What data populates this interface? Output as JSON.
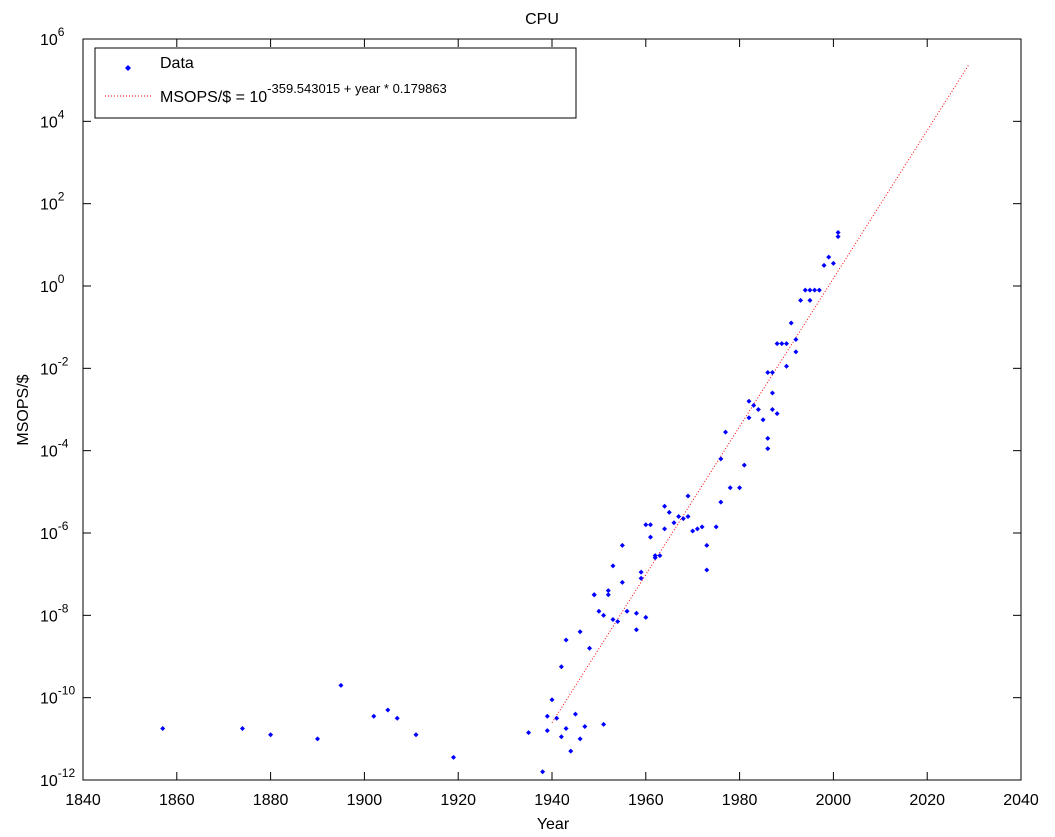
{
  "chart_data": {
    "type": "scatter",
    "title": "CPU",
    "xlabel": "Year",
    "ylabel": "MSOPS/$",
    "xlim": [
      1840,
      2040
    ],
    "ylim_log10": [
      -12,
      6
    ],
    "y_scale": "log",
    "grid": false,
    "legend_position": "top-left",
    "x_ticks": [
      "1840",
      "1860",
      "1880",
      "1900",
      "1920",
      "1940",
      "1960",
      "1980",
      "2000",
      "2020",
      "2040"
    ],
    "y_ticks": [
      {
        "base": "10",
        "exp": "-12"
      },
      {
        "base": "10",
        "exp": "-10"
      },
      {
        "base": "10",
        "exp": "-8"
      },
      {
        "base": "10",
        "exp": "-6"
      },
      {
        "base": "10",
        "exp": "-4"
      },
      {
        "base": "10",
        "exp": "-2"
      },
      {
        "base": "10",
        "exp": "0"
      },
      {
        "base": "10",
        "exp": "2"
      },
      {
        "base": "10",
        "exp": "4"
      },
      {
        "base": "10",
        "exp": "6"
      }
    ],
    "colors": {
      "data": "#0000ff",
      "fit": "#ff0000"
    },
    "legend": {
      "data_label": "Data",
      "fit_label_prefix": "MSOPS/$ = 10",
      "fit_label_exponent": "-359.543015 + year * 0.179863"
    },
    "fit": {
      "intercept": -359.543015,
      "slope": 0.179863,
      "x_range": [
        1940,
        2029
      ]
    },
    "series": [
      {
        "name": "Data",
        "points_log10": [
          [
            1857,
            -10.75
          ],
          [
            1874,
            -10.75
          ],
          [
            1880,
            -10.9
          ],
          [
            1890,
            -11.0
          ],
          [
            1895,
            -9.7
          ],
          [
            1902,
            -10.45
          ],
          [
            1905,
            -10.3
          ],
          [
            1907,
            -10.5
          ],
          [
            1911,
            -10.9
          ],
          [
            1919,
            -11.45
          ],
          [
            1935,
            -10.85
          ],
          [
            1938,
            -11.8
          ],
          [
            1939,
            -10.8
          ],
          [
            1939,
            -10.45
          ],
          [
            1940,
            -10.05
          ],
          [
            1941,
            -10.5
          ],
          [
            1942,
            -10.95
          ],
          [
            1942,
            -9.25
          ],
          [
            1943,
            -8.6
          ],
          [
            1943,
            -10.75
          ],
          [
            1944,
            -11.3
          ],
          [
            1945,
            -10.4
          ],
          [
            1946,
            -8.4
          ],
          [
            1946,
            -11.0
          ],
          [
            1947,
            -10.7
          ],
          [
            1948,
            -8.8
          ],
          [
            1949,
            -7.5
          ],
          [
            1949,
            -7.5
          ],
          [
            1950,
            -7.9
          ],
          [
            1951,
            -8.0
          ],
          [
            1951,
            -10.65
          ],
          [
            1952,
            -7.5
          ],
          [
            1952,
            -7.4
          ],
          [
            1953,
            -8.1
          ],
          [
            1953,
            -6.8
          ],
          [
            1954,
            -8.15
          ],
          [
            1955,
            -7.2
          ],
          [
            1955,
            -6.3
          ],
          [
            1956,
            -7.9
          ],
          [
            1958,
            -7.95
          ],
          [
            1958,
            -8.35
          ],
          [
            1959,
            -7.1
          ],
          [
            1959,
            -6.95
          ],
          [
            1960,
            -5.8
          ],
          [
            1960,
            -8.05
          ],
          [
            1961,
            -5.8
          ],
          [
            1961,
            -6.1
          ],
          [
            1962,
            -6.55
          ],
          [
            1962,
            -6.6
          ],
          [
            1963,
            -6.55
          ],
          [
            1964,
            -5.35
          ],
          [
            1964,
            -5.9
          ],
          [
            1965,
            -5.5
          ],
          [
            1966,
            -5.75
          ],
          [
            1967,
            -5.6
          ],
          [
            1968,
            -5.65
          ],
          [
            1969,
            -5.1
          ],
          [
            1969,
            -5.6
          ],
          [
            1970,
            -5.95
          ],
          [
            1971,
            -5.9
          ],
          [
            1972,
            -5.85
          ],
          [
            1973,
            -6.3
          ],
          [
            1973,
            -6.9
          ],
          [
            1975,
            -5.85
          ],
          [
            1976,
            -5.25
          ],
          [
            1976,
            -4.2
          ],
          [
            1977,
            -3.55
          ],
          [
            1978,
            -4.9
          ],
          [
            1980,
            -4.9
          ],
          [
            1981,
            -4.35
          ],
          [
            1982,
            -3.2
          ],
          [
            1982,
            -2.8
          ],
          [
            1983,
            -2.9
          ],
          [
            1984,
            -3.0
          ],
          [
            1985,
            -3.25
          ],
          [
            1986,
            -3.7
          ],
          [
            1986,
            -3.95
          ],
          [
            1986,
            -2.1
          ],
          [
            1987,
            -3.0
          ],
          [
            1987,
            -2.6
          ],
          [
            1987,
            -2.1
          ],
          [
            1988,
            -3.1
          ],
          [
            1988,
            -1.4
          ],
          [
            1989,
            -1.4
          ],
          [
            1990,
            -1.95
          ],
          [
            1990,
            -1.4
          ],
          [
            1991,
            -0.9
          ],
          [
            1992,
            -1.6
          ],
          [
            1992,
            -1.3
          ],
          [
            1993,
            -0.35
          ],
          [
            1994,
            -0.1
          ],
          [
            1995,
            -0.1
          ],
          [
            1995,
            -0.35
          ],
          [
            1996,
            -0.1
          ],
          [
            1997,
            -0.1
          ],
          [
            1998,
            0.5
          ],
          [
            1999,
            0.7
          ],
          [
            2000,
            0.55
          ],
          [
            2001,
            1.2
          ],
          [
            2001,
            1.3
          ]
        ]
      }
    ]
  }
}
